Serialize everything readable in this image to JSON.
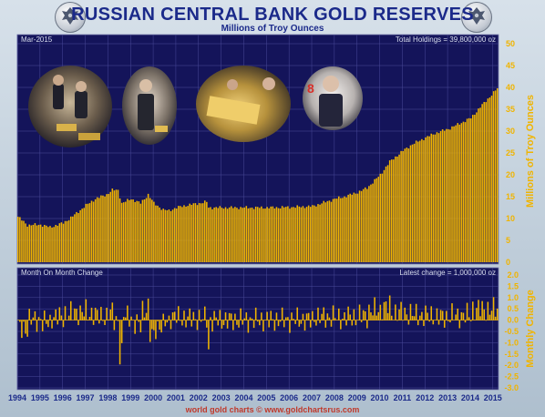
{
  "header": {
    "title": "RUSSIAN CENTRAL BANK GOLD RESERVES",
    "subtitle": "Millions of Troy Ounces"
  },
  "top_panel": {
    "date_label": "Mar-2015",
    "total_label": "Total Holdings = 39,800,000 oz",
    "ylabel": "Millions of Troy Ounces"
  },
  "bottom_panel": {
    "title_label": "Month On Month Change",
    "latest_label": "Latest change = 1,000,000 oz",
    "ylabel": "Monthly Change"
  },
  "footer": {
    "credit": "world gold charts © www.goldchartsrus.com"
  },
  "colors": {
    "panel_bg": "#14145a",
    "bar": "#f0b400",
    "grid": "#4a4a9a",
    "title": "#1b2a8a",
    "footer": "#c0392b"
  },
  "icons": [
    "bank-of-russia-seal-icon",
    "bank-of-russia-seal-icon"
  ],
  "photos": [
    "photo-officials-with-gold-bars",
    "photo-official-holding-gold-bar",
    "photo-officials-with-gold-bar",
    "photo-official-portrait"
  ],
  "chart_data": [
    {
      "type": "bar",
      "title": "RUSSIAN CENTRAL BANK GOLD RESERVES",
      "subtitle": "Millions of Troy Ounces",
      "ylabel": "Millions of Troy Ounces",
      "ylim": [
        0,
        50
      ],
      "yticks": [
        0,
        5,
        10,
        15,
        20,
        25,
        30,
        35,
        40,
        45,
        50
      ],
      "x_ticks": [
        "1994",
        "1995",
        "1996",
        "1997",
        "1998",
        "1999",
        "2000",
        "2001",
        "2002",
        "2003",
        "2004",
        "2005",
        "2006",
        "2007",
        "2008",
        "2009",
        "2010",
        "2011",
        "2012",
        "2013",
        "2014",
        "2015"
      ],
      "x_start": "1994-01",
      "frequency": "monthly",
      "grid": true,
      "anchors": [
        [
          "1994-01",
          10.4
        ],
        [
          "1994-06",
          8.5
        ],
        [
          "1995-01",
          8.6
        ],
        [
          "1995-06",
          8.0
        ],
        [
          "1996-01",
          9.0
        ],
        [
          "1996-06",
          10.5
        ],
        [
          "1997-01",
          13.0
        ],
        [
          "1997-06",
          14.5
        ],
        [
          "1997-12",
          15.5
        ],
        [
          "1998-03",
          16.5
        ],
        [
          "1998-06",
          16.5
        ],
        [
          "1998-08",
          13.5
        ],
        [
          "1999-01",
          14.5
        ],
        [
          "1999-06",
          13.5
        ],
        [
          "1999-10",
          15.5
        ],
        [
          "2000-01",
          13.5
        ],
        [
          "2000-06",
          12.0
        ],
        [
          "2000-09",
          11.8
        ],
        [
          "2001-01",
          12.5
        ],
        [
          "2001-06",
          13.0
        ],
        [
          "2002-01",
          13.5
        ],
        [
          "2002-05",
          13.8
        ],
        [
          "2002-06",
          12.5
        ],
        [
          "2003-01",
          12.5
        ],
        [
          "2004-01",
          12.5
        ],
        [
          "2005-01",
          12.5
        ],
        [
          "2006-01",
          12.6
        ],
        [
          "2007-01",
          12.8
        ],
        [
          "2007-06",
          13.5
        ],
        [
          "2008-01",
          14.5
        ],
        [
          "2008-06",
          15.0
        ],
        [
          "2009-01",
          16.0
        ],
        [
          "2009-06",
          17.0
        ],
        [
          "2010-01",
          20.0
        ],
        [
          "2010-06",
          23.0
        ],
        [
          "2011-01",
          25.5
        ],
        [
          "2011-06",
          27.0
        ],
        [
          "2012-01",
          28.5
        ],
        [
          "2012-06",
          29.5
        ],
        [
          "2013-01",
          30.5
        ],
        [
          "2013-06",
          31.5
        ],
        [
          "2014-01",
          33.0
        ],
        [
          "2014-06",
          35.5
        ],
        [
          "2015-01",
          38.8
        ],
        [
          "2015-03",
          39.8
        ]
      ]
    },
    {
      "type": "bar",
      "title": "Month On Month Change",
      "ylabel": "Monthly Change",
      "ylim": [
        -3.0,
        2.0
      ],
      "yticks": [
        2.0,
        1.5,
        1.0,
        0.5,
        0.0,
        -0.5,
        -1.0,
        -1.5,
        -2.0,
        -2.5,
        -3.0
      ],
      "derived_from": "month-on-month difference of the holdings series above",
      "latest_change": 1.0
    }
  ]
}
